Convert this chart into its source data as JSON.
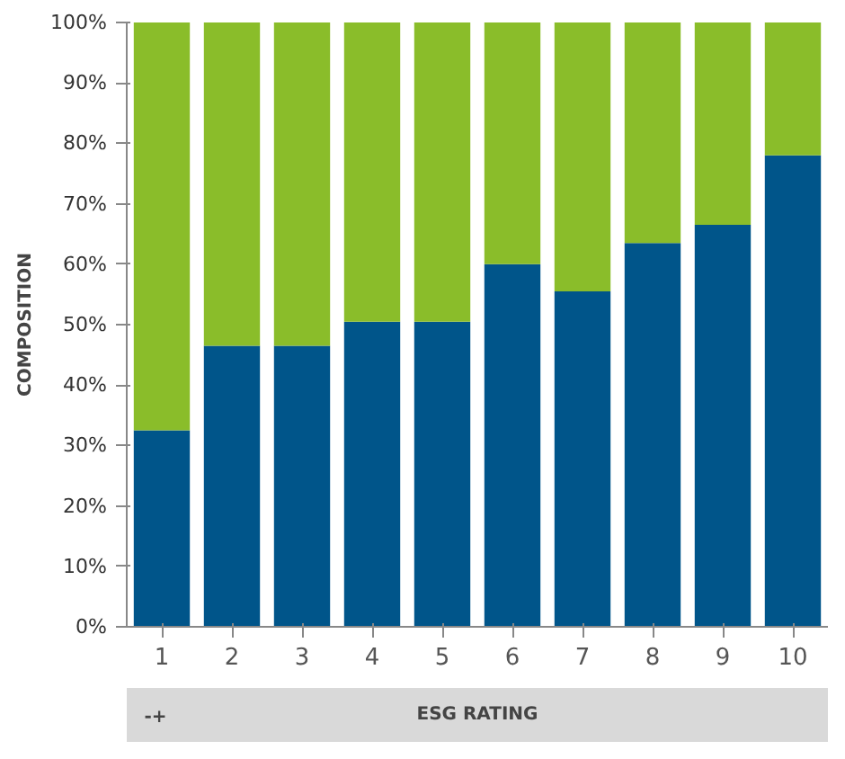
{
  "chart_data": {
    "type": "bar",
    "stacked": true,
    "xlabel": "ESG RATING",
    "ylabel": "COMPOSITION",
    "annotations": [
      "-+"
    ],
    "categories": [
      "1",
      "2",
      "3",
      "4",
      "5",
      "6",
      "7",
      "8",
      "9",
      "10"
    ],
    "series": [
      {
        "color": "#00558a",
        "values": [
          32.5,
          46.5,
          46.5,
          50.5,
          50.5,
          60,
          55.5,
          63.5,
          66.5,
          78
        ]
      },
      {
        "color": "#8abd2a",
        "values": [
          67.5,
          53.5,
          53.5,
          49.5,
          49.5,
          40,
          44.5,
          36.5,
          33.5,
          22
        ]
      }
    ],
    "ylim": [
      0,
      100
    ],
    "yticks": [
      {
        "value": 0,
        "label": "0%"
      },
      {
        "value": 10,
        "label": "10%"
      },
      {
        "value": 20,
        "label": "20%"
      },
      {
        "value": 30,
        "label": "30%"
      },
      {
        "value": 40,
        "label": "40%"
      },
      {
        "value": 50,
        "label": "50%"
      },
      {
        "value": 60,
        "label": "60%"
      },
      {
        "value": 70,
        "label": "70%"
      },
      {
        "value": 80,
        "label": "80%"
      },
      {
        "value": 90,
        "label": "90%"
      },
      {
        "value": 100,
        "label": "100%"
      }
    ],
    "grid": false
  }
}
